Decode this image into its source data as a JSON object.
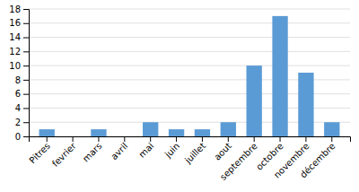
{
  "chart_data": {
    "type": "bar",
    "categories": [
      "Pitres",
      "fevrier",
      "mars",
      "avril",
      "mai",
      "juin",
      "juillet",
      "aout",
      "septembre",
      "octobre",
      "novembre",
      "décembre"
    ],
    "values": [
      1,
      0,
      1,
      0,
      2,
      1,
      1,
      2,
      10,
      17,
      9,
      2
    ],
    "color": "#5b9bd5",
    "ylim": [
      0,
      18
    ],
    "yticks": [
      0,
      2,
      4,
      6,
      8,
      10,
      12,
      14,
      16,
      18
    ],
    "grid": true
  }
}
